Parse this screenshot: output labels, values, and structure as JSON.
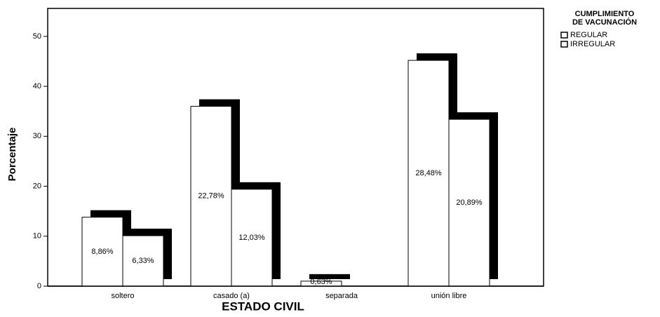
{
  "chart_data": {
    "type": "bar",
    "x_label": "ESTADO CIVIL",
    "y_label": "Porcentaje",
    "legend_title": [
      "CUMPLIMIENTO",
      "DE VACUNACIÓN"
    ],
    "categories": [
      "soltero",
      "casado (a)",
      "separada",
      "unión libre"
    ],
    "series": [
      {
        "name": "REGULAR",
        "color": "#ffffff",
        "shadow": "#000000",
        "values": [
          13.8,
          36.0,
          1.0,
          45.2
        ],
        "data_labels": [
          "8,86%",
          "22,78%",
          "0,63%",
          "28,48%"
        ]
      },
      {
        "name": "IRREGULAR",
        "color": "#ffffff",
        "shadow": "#000000",
        "values": [
          10.1,
          19.4,
          0,
          33.4
        ],
        "data_labels": [
          "6,33%",
          "12,03%",
          null,
          "20,89%"
        ]
      }
    ],
    "ylim": [
      0,
      55.6
    ],
    "yticks": [
      0,
      10,
      20,
      30,
      40,
      50
    ]
  }
}
